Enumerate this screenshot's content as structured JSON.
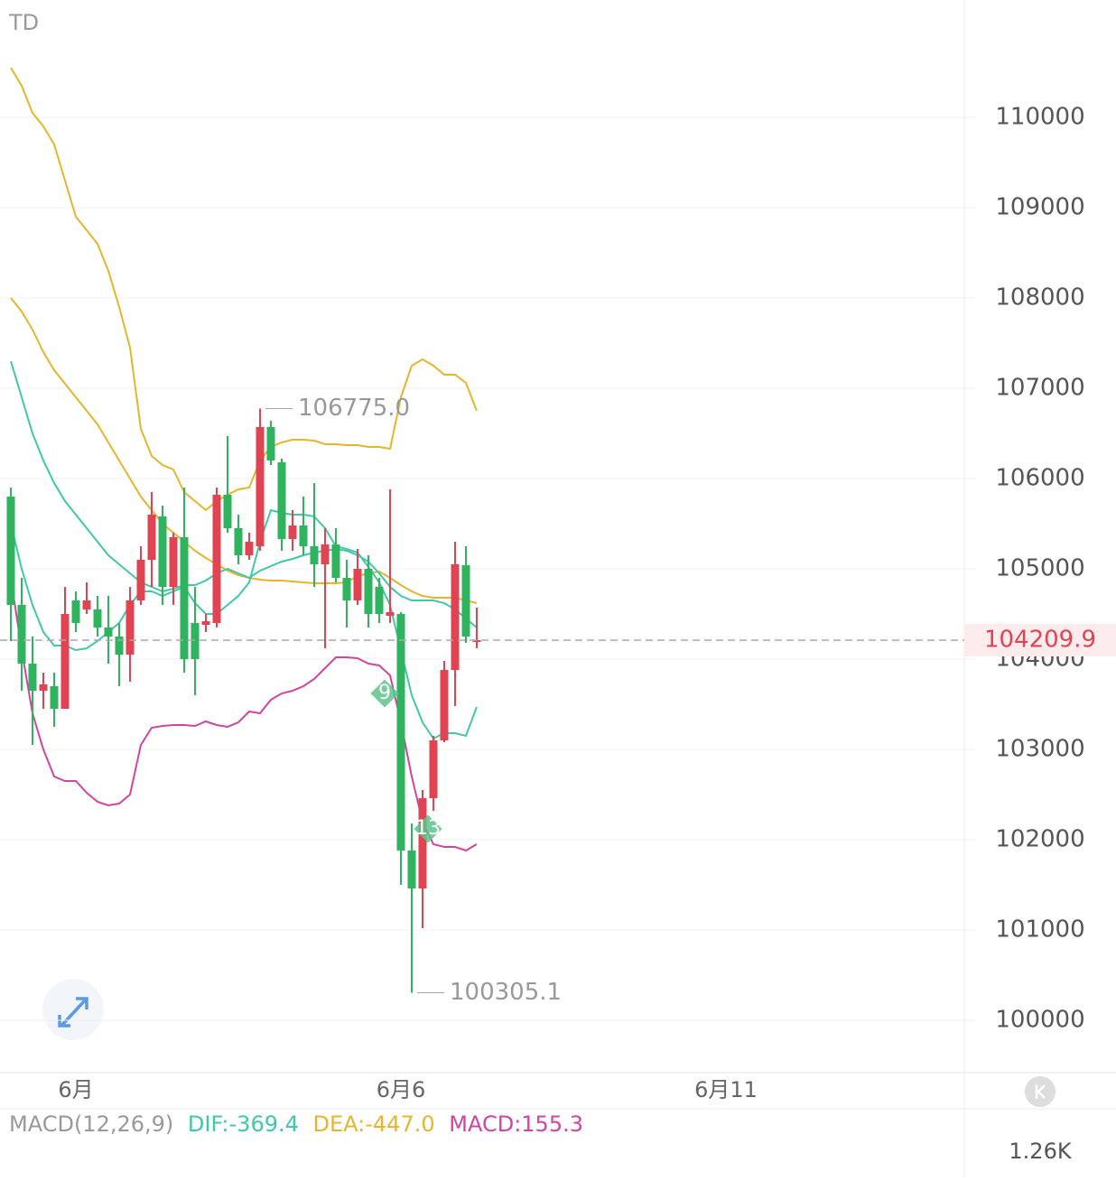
{
  "chart_data": {
    "type": "candlestick",
    "indicator": "TD",
    "open": [
      105800,
      104600,
      103950,
      103650,
      103700,
      103450,
      104650,
      104550,
      104550,
      104350,
      104250,
      104050,
      104650,
      105100,
      105580,
      104800,
      105350,
      104400,
      104380,
      104400,
      105820,
      105450,
      105150,
      105250,
      106570,
      106180,
      105330,
      105480,
      105250,
      105050,
      105270,
      104900,
      104650,
      105000,
      104800,
      104480,
      104500,
      101880,
      101460,
      102460,
      103100,
      103880,
      105040,
      104200
    ],
    "high": [
      105900,
      104900,
      104250,
      103850,
      103850,
      104800,
      104750,
      104850,
      104700,
      104700,
      104400,
      104800,
      105250,
      105850,
      105700,
      105400,
      105900,
      104800,
      104500,
      105900,
      106470,
      105600,
      105400,
      106775,
      106640,
      106220,
      105650,
      105800,
      105950,
      105450,
      105450,
      105100,
      105220,
      105150,
      104900,
      105880,
      104520,
      102180,
      102550,
      103150,
      103980,
      105300,
      105250,
      104570
    ],
    "low": [
      104200,
      103650,
      103050,
      103450,
      103250,
      103450,
      104300,
      104500,
      104250,
      103950,
      103700,
      103750,
      104600,
      104800,
      104600,
      104600,
      103850,
      103600,
      104300,
      104350,
      105400,
      105050,
      105100,
      105200,
      106150,
      105200,
      105200,
      105150,
      104800,
      104120,
      104850,
      104350,
      104600,
      104350,
      104400,
      104400,
      101500,
      100305.1,
      101020,
      102320,
      103080,
      103480,
      104180,
      104120
    ],
    "close": [
      104600,
      103950,
      103650,
      103720,
      103450,
      104500,
      104400,
      104650,
      104350,
      104250,
      104050,
      104650,
      105100,
      105600,
      104800,
      105350,
      104000,
      104000,
      104420,
      105820,
      105450,
      105150,
      105300,
      106570,
      106200,
      105330,
      105480,
      105250,
      105050,
      105270,
      104900,
      104650,
      105000,
      104500,
      104500,
      104520,
      101880,
      101460,
      102460,
      103100,
      103880,
      105050,
      104250,
      104209.9
    ],
    "up_color": "#e04452",
    "down_color": "#2fb35e",
    "lines": [
      {
        "color": "#e8b52a",
        "values": [
          110550,
          110350,
          110050,
          109900,
          109700,
          109300,
          108900,
          108750,
          108600,
          108300,
          107900,
          107450,
          106550,
          106250,
          106150,
          106100,
          105850,
          105750,
          105650,
          105750,
          105820,
          105880,
          105900,
          106200,
          106350,
          106400,
          106430,
          106430,
          106420,
          106380,
          106380,
          106370,
          106370,
          106350,
          106350,
          106330,
          106900,
          107250,
          107320,
          107250,
          107150,
          107150,
          107060,
          106750
        ]
      },
      {
        "color": "#e8b52a",
        "values": [
          108000,
          107850,
          107650,
          107400,
          107200,
          107050,
          106900,
          106750,
          106600,
          106400,
          106200,
          106000,
          105800,
          105650,
          105500,
          105400,
          105300,
          105200,
          105120,
          105050,
          104980,
          104930,
          104900,
          104880,
          104870,
          104870,
          104860,
          104850,
          104840,
          104840,
          104840,
          104850,
          104920,
          104950,
          104970,
          104900,
          104820,
          104750,
          104700,
          104680,
          104680,
          104680,
          104650,
          104620
        ]
      },
      {
        "color": "#3fc9a6",
        "values": [
          107300,
          106900,
          106500,
          106200,
          105950,
          105750,
          105600,
          105450,
          105300,
          105150,
          105050,
          104950,
          104850,
          104800,
          104750,
          104780,
          104820,
          104820,
          104870,
          104950,
          105000,
          104950,
          104900,
          104980,
          105030,
          105080,
          105110,
          105150,
          105180,
          105200,
          105220,
          105200,
          105150,
          105080,
          104950,
          104800,
          104700,
          104650,
          104650,
          104650,
          104620,
          104550,
          104450,
          104350
        ]
      },
      {
        "color": "#3fc9a6",
        "values": [
          105500,
          105000,
          104600,
          104300,
          104150,
          104150,
          104100,
          104120,
          104200,
          104300,
          104400,
          104600,
          104750,
          104750,
          104700,
          104750,
          104800,
          104620,
          104500,
          104500,
          104600,
          104700,
          104850,
          105300,
          105650,
          105620,
          105600,
          105600,
          105580,
          105450,
          105250,
          105220,
          105180,
          105020,
          104850,
          104600,
          104100,
          103600,
          103300,
          103120,
          103180,
          103180,
          103150,
          103470
        ]
      },
      {
        "color": "#d2449e",
        "values": [
          104900,
          104100,
          103400,
          103000,
          102700,
          102650,
          102650,
          102520,
          102420,
          102380,
          102400,
          102500,
          103050,
          103240,
          103260,
          103270,
          103270,
          103260,
          103310,
          103270,
          103250,
          103300,
          103420,
          103400,
          103550,
          103620,
          103650,
          103700,
          103780,
          103900,
          104020,
          104020,
          104010,
          103950,
          103930,
          103820,
          103300,
          102700,
          102200,
          101950,
          101920,
          101920,
          101880,
          101950
        ]
      }
    ],
    "annotations": [
      {
        "index": 23,
        "value": 106775,
        "label": "106775.0"
      },
      {
        "index": 37,
        "value": 100305.1
      }
    ],
    "signals": [
      {
        "index": 35,
        "value": 103620,
        "label": "9"
      },
      {
        "index": 39,
        "value": 102120,
        "label": "13"
      }
    ],
    "last_price": 104209.9,
    "ylim": [
      99420,
      111300
    ],
    "yticks": [
      100000,
      101000,
      102000,
      103000,
      104000,
      105000,
      106000,
      107000,
      108000,
      109000,
      110000
    ],
    "xticks": [
      {
        "value": 6,
        "label": "6月"
      },
      {
        "value": 36,
        "label": "6月6"
      },
      {
        "value": 66,
        "label": "6月11"
      }
    ],
    "macd": {
      "name": "MACD(12,26,9)",
      "dif": "DIF:-369.4",
      "dea": "DEA:-447.0",
      "macd": "MACD:155.3",
      "axis_label": "1.26K"
    }
  }
}
